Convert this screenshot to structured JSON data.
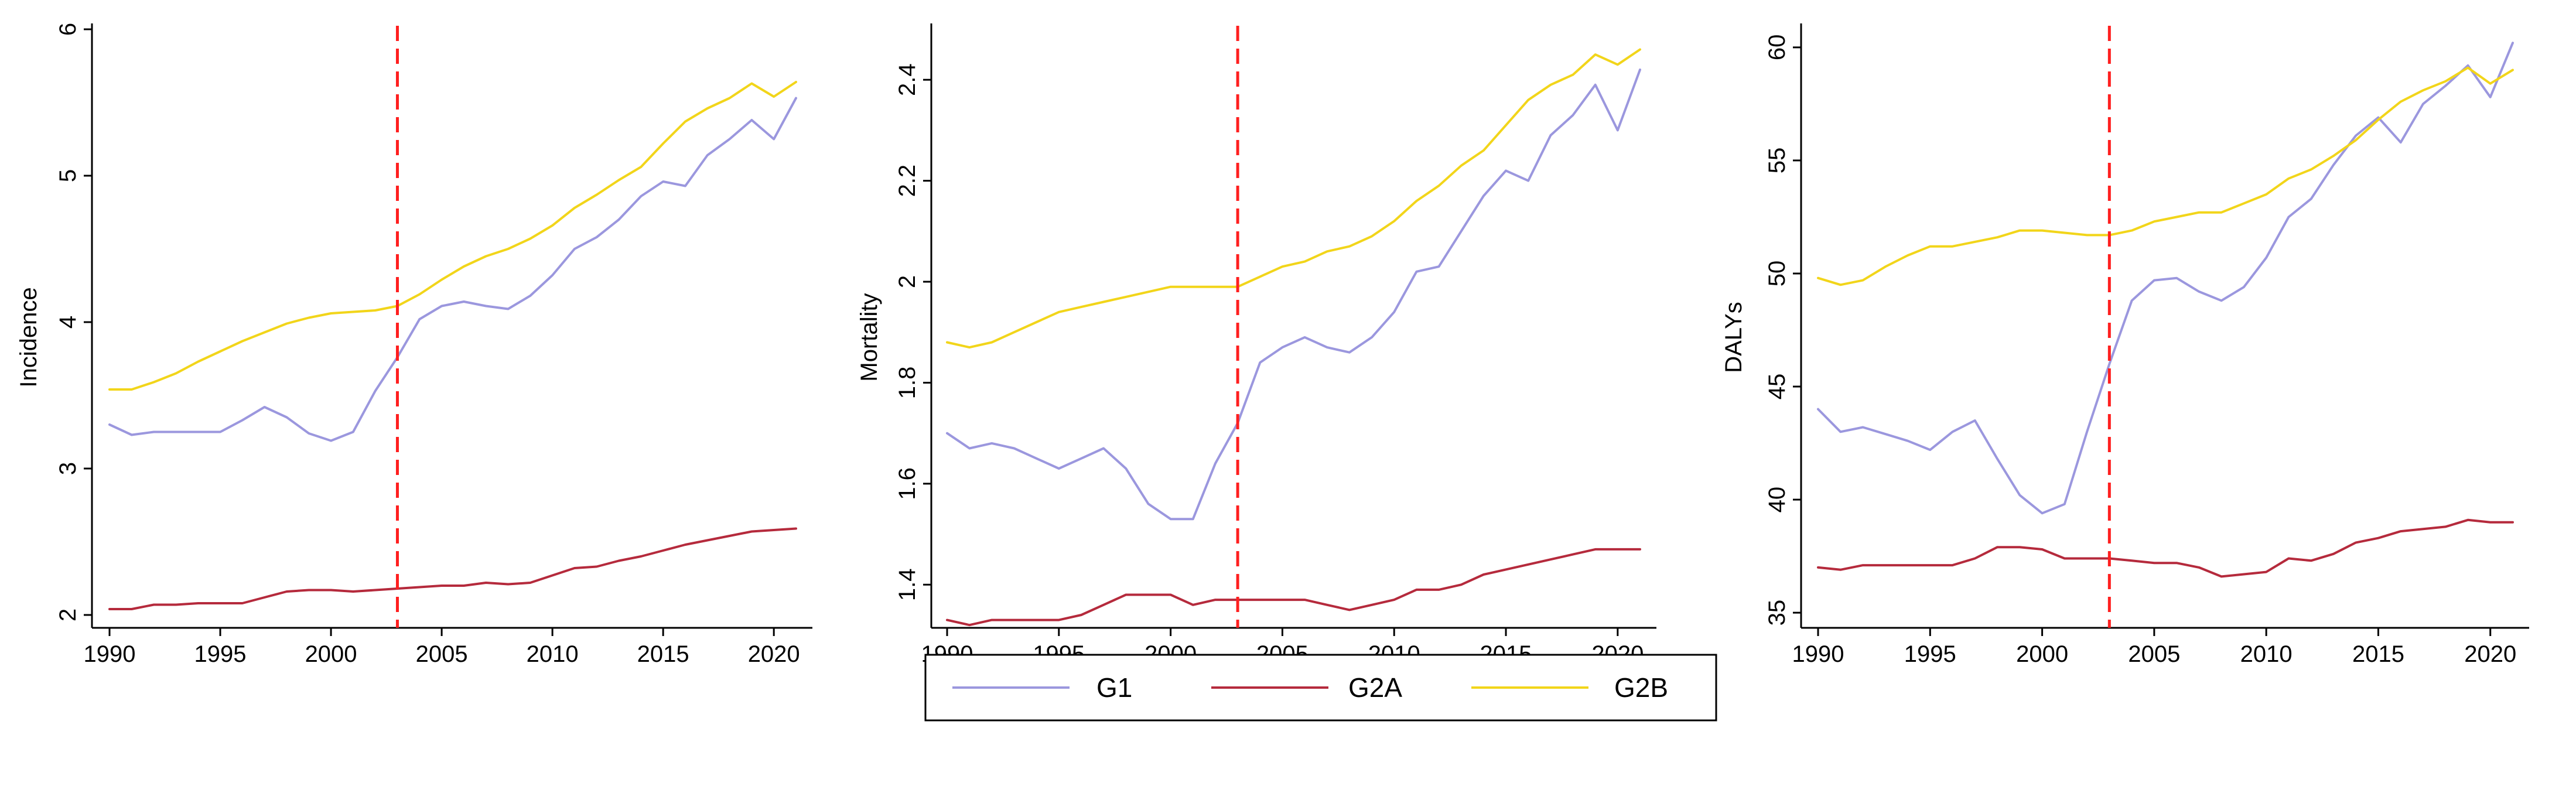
{
  "chart_data": [
    {
      "type": "line",
      "title": "",
      "xlabel": "",
      "ylabel": "Incidence",
      "x": [
        1990,
        1991,
        1992,
        1993,
        1994,
        1995,
        1996,
        1997,
        1998,
        1999,
        2000,
        2001,
        2002,
        2003,
        2004,
        2005,
        2006,
        2007,
        2008,
        2009,
        2010,
        2011,
        2012,
        2013,
        2014,
        2015,
        2016,
        2017,
        2018,
        2019,
        2020,
        2021
      ],
      "xlim": [
        1990,
        2021
      ],
      "ylim": [
        2,
        6
      ],
      "xticks": [
        "1990",
        "1995",
        "2000",
        "2005",
        "2010",
        "2015",
        "2020"
      ],
      "yticks": [
        "2",
        "3",
        "4",
        "5",
        "6"
      ],
      "reference_line_x": 2003,
      "series": [
        {
          "name": "G1",
          "values": [
            3.3,
            3.23,
            3.25,
            3.25,
            3.25,
            3.25,
            3.33,
            3.42,
            3.35,
            3.24,
            3.19,
            3.25,
            3.53,
            3.76,
            4.02,
            4.11,
            4.14,
            4.11,
            4.09,
            4.18,
            4.32,
            4.5,
            4.58,
            4.7,
            4.86,
            4.96,
            4.93,
            5.14,
            5.25,
            5.38,
            5.25,
            5.53
          ]
        },
        {
          "name": "G2A",
          "values": [
            2.04,
            2.04,
            2.07,
            2.07,
            2.08,
            2.08,
            2.08,
            2.12,
            2.16,
            2.17,
            2.17,
            2.16,
            2.17,
            2.18,
            2.19,
            2.2,
            2.2,
            2.22,
            2.21,
            2.22,
            2.27,
            2.32,
            2.33,
            2.37,
            2.4,
            2.44,
            2.48,
            2.51,
            2.54,
            2.57,
            2.58,
            2.59
          ]
        },
        {
          "name": "G2B",
          "values": [
            3.54,
            3.54,
            3.59,
            3.65,
            3.73,
            3.8,
            3.87,
            3.93,
            3.99,
            4.03,
            4.06,
            4.07,
            4.08,
            4.11,
            4.19,
            4.29,
            4.38,
            4.45,
            4.5,
            4.57,
            4.66,
            4.78,
            4.87,
            4.97,
            5.06,
            5.22,
            5.37,
            5.46,
            5.53,
            5.63,
            5.54,
            5.64
          ]
        }
      ]
    },
    {
      "type": "line",
      "title": "",
      "xlabel": "",
      "ylabel": "Mortality",
      "x": [
        1990,
        1991,
        1992,
        1993,
        1994,
        1995,
        1996,
        1997,
        1998,
        1999,
        2000,
        2001,
        2002,
        2003,
        2004,
        2005,
        2006,
        2007,
        2008,
        2009,
        2010,
        2011,
        2012,
        2013,
        2014,
        2015,
        2016,
        2017,
        2018,
        2019,
        2020,
        2021
      ],
      "xlim": [
        1990,
        2021
      ],
      "ylim": [
        1.34,
        2.5
      ],
      "xticks": [
        "1990",
        "1995",
        "2000",
        "2005",
        "2010",
        "2015",
        "2020"
      ],
      "yticks": [
        "1.4",
        "1.6",
        "1.8",
        "2",
        "2.2",
        "2.4"
      ],
      "ytick_values": [
        1.4,
        1.6,
        1.8,
        2.0,
        2.2,
        2.4
      ],
      "reference_line_x": 2003,
      "series": [
        {
          "name": "G1",
          "values": [
            1.7,
            1.67,
            1.68,
            1.67,
            1.65,
            1.63,
            1.65,
            1.67,
            1.63,
            1.56,
            1.53,
            1.53,
            1.64,
            1.72,
            1.84,
            1.87,
            1.89,
            1.87,
            1.86,
            1.89,
            1.94,
            2.02,
            2.03,
            2.1,
            2.17,
            2.22,
            2.2,
            2.29,
            2.33,
            2.39,
            2.3,
            2.42
          ]
        },
        {
          "name": "G2A",
          "values": [
            1.33,
            1.32,
            1.33,
            1.33,
            1.33,
            1.33,
            1.34,
            1.36,
            1.38,
            1.38,
            1.38,
            1.36,
            1.37,
            1.37,
            1.37,
            1.37,
            1.37,
            1.36,
            1.35,
            1.36,
            1.37,
            1.39,
            1.39,
            1.4,
            1.42,
            1.43,
            1.44,
            1.45,
            1.46,
            1.47,
            1.47,
            1.47
          ]
        },
        {
          "name": "G2B",
          "values": [
            1.88,
            1.87,
            1.88,
            1.9,
            1.92,
            1.94,
            1.95,
            1.96,
            1.97,
            1.98,
            1.99,
            1.99,
            1.99,
            1.99,
            2.01,
            2.03,
            2.04,
            2.06,
            2.07,
            2.09,
            2.12,
            2.16,
            2.19,
            2.23,
            2.26,
            2.31,
            2.36,
            2.39,
            2.41,
            2.45,
            2.43,
            2.46
          ]
        }
      ]
    },
    {
      "type": "line",
      "title": "",
      "xlabel": "",
      "ylabel": "DALYs",
      "x": [
        1990,
        1991,
        1992,
        1993,
        1994,
        1995,
        1996,
        1997,
        1998,
        1999,
        2000,
        2001,
        2002,
        2003,
        2004,
        2005,
        2006,
        2007,
        2008,
        2009,
        2010,
        2011,
        2012,
        2013,
        2014,
        2015,
        2016,
        2017,
        2018,
        2019,
        2020,
        2021
      ],
      "xlim": [
        1990,
        2021
      ],
      "ylim": [
        34.9,
        60.8
      ],
      "xticks": [
        "1990",
        "1995",
        "2000",
        "2005",
        "2010",
        "2015",
        "2020"
      ],
      "yticks": [
        "35",
        "40",
        "45",
        "50",
        "55",
        "60"
      ],
      "ytick_values": [
        35,
        40,
        45,
        50,
        55,
        60
      ],
      "reference_line_x": 2003,
      "series": [
        {
          "name": "G1",
          "values": [
            44.0,
            43.0,
            43.2,
            42.9,
            42.6,
            42.2,
            43.0,
            43.5,
            41.8,
            40.2,
            39.4,
            39.8,
            43.0,
            46.0,
            48.8,
            49.7,
            49.8,
            49.2,
            48.8,
            49.4,
            50.7,
            52.5,
            53.3,
            54.8,
            56.1,
            56.9,
            55.8,
            57.5,
            58.3,
            59.2,
            57.8,
            60.2
          ]
        },
        {
          "name": "G2A",
          "values": [
            37.0,
            36.9,
            37.1,
            37.1,
            37.1,
            37.1,
            37.1,
            37.4,
            37.9,
            37.9,
            37.8,
            37.4,
            37.4,
            37.4,
            37.3,
            37.2,
            37.2,
            37.0,
            36.6,
            36.7,
            36.8,
            37.4,
            37.3,
            37.6,
            38.1,
            38.3,
            38.6,
            38.7,
            38.8,
            39.1,
            39.0,
            39.0
          ]
        },
        {
          "name": "G2B",
          "values": [
            49.8,
            49.5,
            49.7,
            50.3,
            50.8,
            51.2,
            51.2,
            51.4,
            51.6,
            51.9,
            51.9,
            51.8,
            51.7,
            51.7,
            51.9,
            52.3,
            52.5,
            52.7,
            52.7,
            53.1,
            53.5,
            54.2,
            54.6,
            55.2,
            55.9,
            56.8,
            57.6,
            58.1,
            58.5,
            59.1,
            58.4,
            59.0
          ]
        }
      ]
    }
  ],
  "legend": {
    "items": [
      {
        "name": "G1",
        "color": "#9b97de"
      },
      {
        "name": "G2A",
        "color": "#b52a3c"
      },
      {
        "name": "G2B",
        "color": "#f2d51a"
      }
    ]
  },
  "colors": {
    "G1": "#9b97de",
    "G2A": "#b52a3c",
    "G2B": "#f2d51a",
    "reference": "#ff1f1f"
  }
}
